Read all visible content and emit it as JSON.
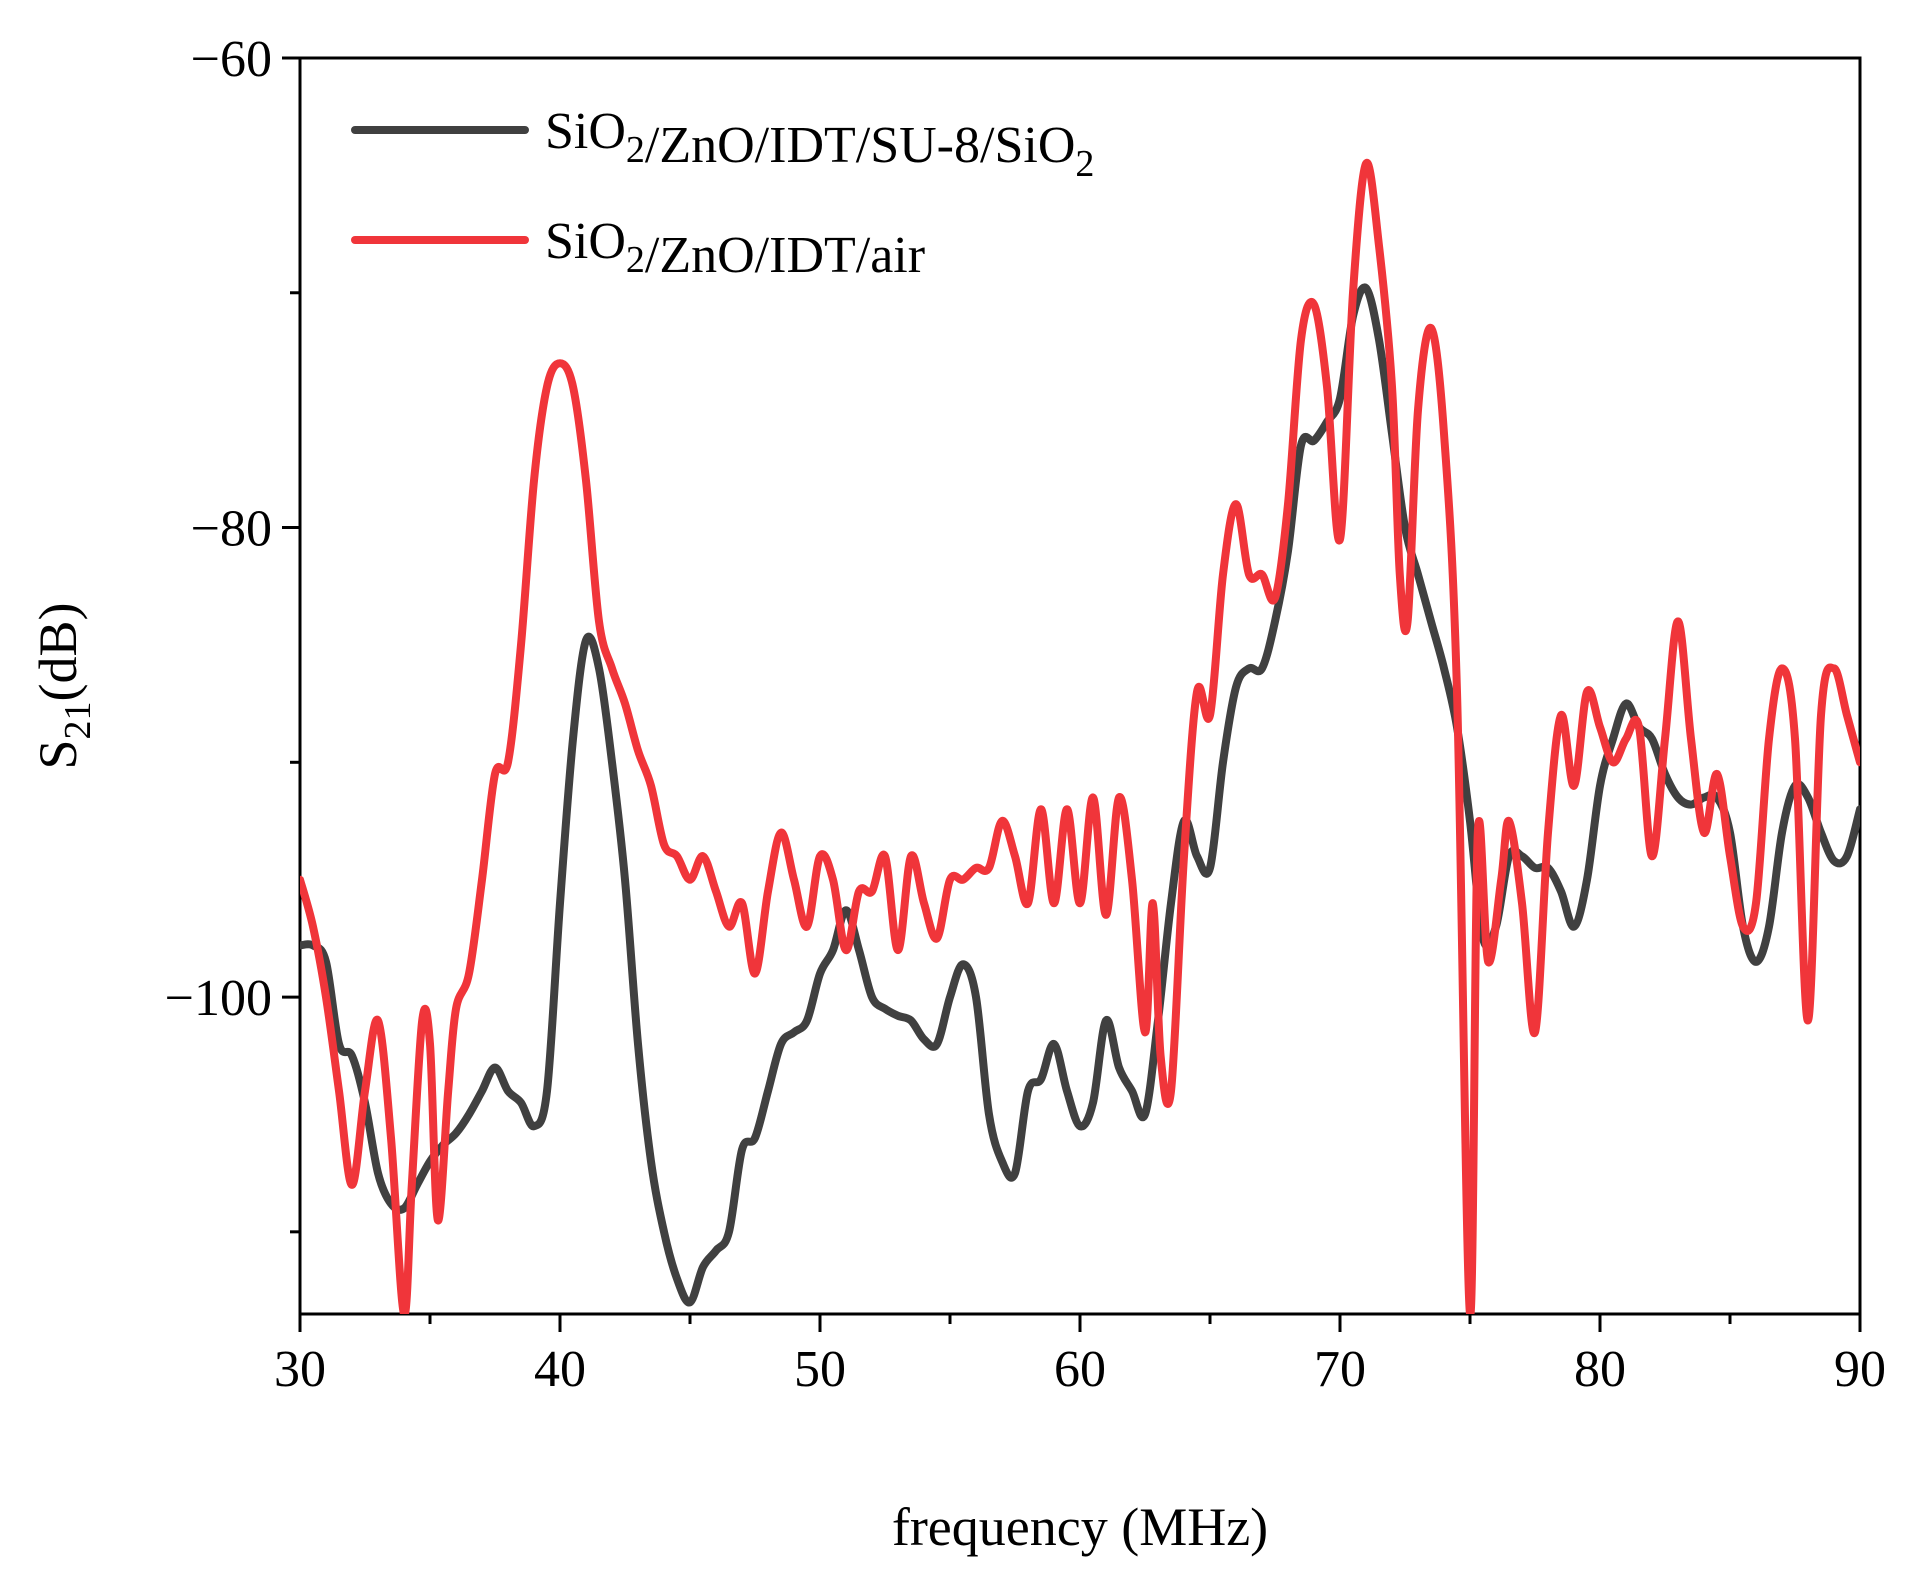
{
  "chart_data": {
    "type": "line",
    "title": "",
    "xlabel": "frequency (MHz)",
    "ylabel": {
      "base": "S",
      "sub": "21",
      "rest": "(dB)"
    },
    "xlim": [
      30,
      90
    ],
    "ylim": [
      -113.5,
      -60
    ],
    "x_ticks": [
      30,
      40,
      50,
      60,
      70,
      80,
      90
    ],
    "y_ticks": [
      -60,
      -80,
      -100
    ],
    "x_tick_labels": [
      "30",
      "40",
      "50",
      "60",
      "70",
      "80",
      "90"
    ],
    "y_tick_labels": [
      "−60",
      "−80",
      "−100"
    ],
    "x_minor_ticks": [
      35,
      45,
      55,
      65,
      75,
      85
    ],
    "y_minor_ticks": [
      -70,
      -90,
      -110
    ],
    "legend_position": "top-left",
    "series": [
      {
        "name": "SiO2/ZnO/IDT/SU-8/SiO2",
        "legend_parts": [
          {
            "text": "SiO",
            "sub": "2"
          },
          {
            "text": "/ZnO/IDT/SU-8/SiO",
            "sub": "2"
          }
        ],
        "color": "#404040",
        "points": [
          [
            30,
            -97.8
          ],
          [
            30.5,
            -97.8
          ],
          [
            31,
            -98.5
          ],
          [
            31.5,
            -102
          ],
          [
            32,
            -102.5
          ],
          [
            32.5,
            -104.5
          ],
          [
            33,
            -107.5
          ],
          [
            33.5,
            -108.8
          ],
          [
            34,
            -109
          ],
          [
            34.5,
            -108
          ],
          [
            35,
            -107
          ],
          [
            35.5,
            -106.3
          ],
          [
            36,
            -105.8
          ],
          [
            36.5,
            -105
          ],
          [
            37,
            -104
          ],
          [
            37.5,
            -103
          ],
          [
            38,
            -104
          ],
          [
            38.5,
            -104.5
          ],
          [
            39,
            -105.5
          ],
          [
            39.5,
            -104
          ],
          [
            40,
            -96
          ],
          [
            40.5,
            -89
          ],
          [
            41,
            -84.8
          ],
          [
            41.5,
            -86
          ],
          [
            42,
            -90
          ],
          [
            42.5,
            -95
          ],
          [
            43,
            -102
          ],
          [
            43.5,
            -107
          ],
          [
            44,
            -110
          ],
          [
            44.5,
            -112
          ],
          [
            45,
            -113
          ],
          [
            45.5,
            -111.5
          ],
          [
            46,
            -110.8
          ],
          [
            46.5,
            -110
          ],
          [
            47,
            -106.5
          ],
          [
            47.5,
            -106
          ],
          [
            48,
            -104
          ],
          [
            48.5,
            -102
          ],
          [
            49,
            -101.5
          ],
          [
            49.5,
            -101
          ],
          [
            50,
            -99
          ],
          [
            50.5,
            -98
          ],
          [
            51,
            -96.3
          ],
          [
            51.5,
            -98
          ],
          [
            52,
            -100
          ],
          [
            52.5,
            -100.5
          ],
          [
            53,
            -100.8
          ],
          [
            53.5,
            -101
          ],
          [
            54,
            -101.8
          ],
          [
            54.5,
            -102
          ],
          [
            55,
            -100
          ],
          [
            55.5,
            -98.6
          ],
          [
            56,
            -100
          ],
          [
            56.5,
            -105
          ],
          [
            57,
            -107
          ],
          [
            57.5,
            -107.5
          ],
          [
            58,
            -104
          ],
          [
            58.5,
            -103.5
          ],
          [
            59,
            -102
          ],
          [
            59.5,
            -104
          ],
          [
            60,
            -105.5
          ],
          [
            60.5,
            -104.5
          ],
          [
            61,
            -101
          ],
          [
            61.5,
            -103
          ],
          [
            62,
            -104
          ],
          [
            62.5,
            -105
          ],
          [
            63,
            -101
          ],
          [
            63.5,
            -96
          ],
          [
            64,
            -92.5
          ],
          [
            64.5,
            -94
          ],
          [
            65,
            -94.5
          ],
          [
            65.5,
            -90
          ],
          [
            66,
            -86.8
          ],
          [
            66.5,
            -86
          ],
          [
            67,
            -86
          ],
          [
            67.5,
            -84
          ],
          [
            68,
            -81
          ],
          [
            68.5,
            -76.5
          ],
          [
            69,
            -76.3
          ],
          [
            69.5,
            -75.5
          ],
          [
            70,
            -74.5
          ],
          [
            70.5,
            -71
          ],
          [
            71,
            -69.8
          ],
          [
            71.5,
            -72
          ],
          [
            72,
            -76
          ],
          [
            72.5,
            -80
          ],
          [
            73,
            -82
          ],
          [
            73.5,
            -84
          ],
          [
            74,
            -86
          ],
          [
            74.5,
            -88.5
          ],
          [
            75,
            -92.5
          ],
          [
            75.5,
            -97.5
          ],
          [
            76,
            -97
          ],
          [
            76.5,
            -94
          ],
          [
            77,
            -94
          ],
          [
            77.5,
            -94.5
          ],
          [
            78,
            -94.5
          ],
          [
            78.5,
            -95.5
          ],
          [
            79,
            -97
          ],
          [
            79.5,
            -95
          ],
          [
            80,
            -91
          ],
          [
            80.5,
            -89
          ],
          [
            81,
            -87.5
          ],
          [
            81.5,
            -88.5
          ],
          [
            82,
            -89
          ],
          [
            82.5,
            -90.5
          ],
          [
            83,
            -91.5
          ],
          [
            83.5,
            -91.8
          ],
          [
            84,
            -91.5
          ],
          [
            84.5,
            -91.5
          ],
          [
            85,
            -93
          ],
          [
            85.5,
            -97
          ],
          [
            86,
            -98.5
          ],
          [
            86.5,
            -97
          ],
          [
            87,
            -93
          ],
          [
            87.5,
            -91
          ],
          [
            88,
            -91.5
          ],
          [
            88.5,
            -93
          ],
          [
            89,
            -94.2
          ],
          [
            89.5,
            -94
          ],
          [
            90,
            -92
          ]
        ]
      },
      {
        "name": "SiO2/ZnO/IDT/air",
        "legend_parts": [
          {
            "text": "SiO",
            "sub": "2"
          },
          {
            "text": "/ZnO/IDT/air",
            "sub": ""
          }
        ],
        "color": "#f0353a",
        "points": [
          [
            30,
            -95
          ],
          [
            30.5,
            -97
          ],
          [
            31,
            -100
          ],
          [
            31.5,
            -104
          ],
          [
            32,
            -108
          ],
          [
            32.5,
            -104
          ],
          [
            33,
            -101
          ],
          [
            33.5,
            -106
          ],
          [
            34,
            -113.5
          ],
          [
            34.3,
            -108
          ],
          [
            34.7,
            -101
          ],
          [
            35,
            -102
          ],
          [
            35.3,
            -109.5
          ],
          [
            35.7,
            -104
          ],
          [
            36,
            -100.5
          ],
          [
            36.5,
            -99
          ],
          [
            37,
            -95
          ],
          [
            37.5,
            -90.5
          ],
          [
            38,
            -90
          ],
          [
            38.5,
            -85
          ],
          [
            39,
            -78
          ],
          [
            39.5,
            -74
          ],
          [
            40,
            -73
          ],
          [
            40.5,
            -74
          ],
          [
            41,
            -78
          ],
          [
            41.5,
            -84
          ],
          [
            42,
            -86
          ],
          [
            42.5,
            -87.5
          ],
          [
            43,
            -89.5
          ],
          [
            43.5,
            -91
          ],
          [
            44,
            -93.5
          ],
          [
            44.5,
            -94
          ],
          [
            45,
            -95
          ],
          [
            45.5,
            -94
          ],
          [
            46,
            -95.5
          ],
          [
            46.5,
            -97
          ],
          [
            47,
            -96
          ],
          [
            47.5,
            -99
          ],
          [
            48,
            -95.5
          ],
          [
            48.5,
            -93
          ],
          [
            49,
            -95
          ],
          [
            49.5,
            -97
          ],
          [
            50,
            -94
          ],
          [
            50.5,
            -95
          ],
          [
            51,
            -98
          ],
          [
            51.5,
            -95.5
          ],
          [
            52,
            -95.5
          ],
          [
            52.5,
            -94
          ],
          [
            53,
            -98
          ],
          [
            53.5,
            -94
          ],
          [
            54,
            -96
          ],
          [
            54.5,
            -97.5
          ],
          [
            55,
            -95
          ],
          [
            55.5,
            -95
          ],
          [
            56,
            -94.5
          ],
          [
            56.5,
            -94.5
          ],
          [
            57,
            -92.5
          ],
          [
            57.5,
            -94
          ],
          [
            58,
            -96
          ],
          [
            58.5,
            -92
          ],
          [
            59,
            -96
          ],
          [
            59.5,
            -92
          ],
          [
            60,
            -96
          ],
          [
            60.5,
            -91.5
          ],
          [
            61,
            -96.5
          ],
          [
            61.5,
            -91.5
          ],
          [
            62,
            -95
          ],
          [
            62.5,
            -101.5
          ],
          [
            62.8,
            -96
          ],
          [
            63.1,
            -102.5
          ],
          [
            63.5,
            -104
          ],
          [
            64,
            -94
          ],
          [
            64.5,
            -87
          ],
          [
            65,
            -88
          ],
          [
            65.5,
            -82
          ],
          [
            66,
            -79
          ],
          [
            66.5,
            -82
          ],
          [
            67,
            -82
          ],
          [
            67.5,
            -83
          ],
          [
            68,
            -79
          ],
          [
            68.5,
            -72
          ],
          [
            69,
            -70.5
          ],
          [
            69.5,
            -74
          ],
          [
            70,
            -80.5
          ],
          [
            70.5,
            -70
          ],
          [
            71,
            -64.5
          ],
          [
            71.5,
            -68
          ],
          [
            72,
            -74
          ],
          [
            72.3,
            -82
          ],
          [
            72.6,
            -84
          ],
          [
            73,
            -75
          ],
          [
            73.5,
            -71.5
          ],
          [
            74,
            -76
          ],
          [
            74.5,
            -87
          ],
          [
            75,
            -113.5
          ],
          [
            75.3,
            -93
          ],
          [
            75.7,
            -98.5
          ],
          [
            76.2,
            -95
          ],
          [
            76.5,
            -92.5
          ],
          [
            77,
            -96
          ],
          [
            77.5,
            -101.5
          ],
          [
            78,
            -93
          ],
          [
            78.5,
            -88
          ],
          [
            79,
            -91
          ],
          [
            79.5,
            -87
          ],
          [
            80,
            -88.5
          ],
          [
            80.5,
            -90
          ],
          [
            81,
            -89
          ],
          [
            81.5,
            -88.5
          ],
          [
            82,
            -94
          ],
          [
            82.5,
            -89
          ],
          [
            83,
            -84
          ],
          [
            83.5,
            -89
          ],
          [
            84,
            -93
          ],
          [
            84.5,
            -90.5
          ],
          [
            85,
            -94
          ],
          [
            85.5,
            -97
          ],
          [
            86,
            -96
          ],
          [
            86.5,
            -89
          ],
          [
            87,
            -86
          ],
          [
            87.5,
            -89
          ],
          [
            88,
            -101
          ],
          [
            88.5,
            -88
          ],
          [
            89,
            -86
          ],
          [
            89.5,
            -88
          ],
          [
            90,
            -90
          ]
        ]
      }
    ]
  }
}
